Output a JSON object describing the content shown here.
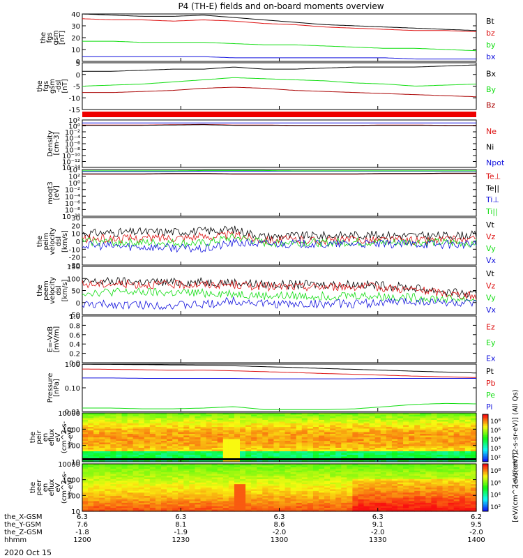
{
  "colors": {
    "black": "#000000",
    "red": "#dd1111",
    "green": "#11dd11",
    "blue": "#1111dd",
    "darkred": "#aa0000"
  },
  "chart_data": {
    "type": "line",
    "title": "P4 (TH-E) fields and on-board moments overview",
    "date": "2020 Oct 15",
    "x_range": [
      "1200",
      "1400"
    ],
    "ticks": {
      "rows": [
        {
          "name": "the_X-GSM",
          "values": [
            "6.3",
            "6.3",
            "6.3",
            "6.3",
            "6.2"
          ]
        },
        {
          "name": "the_Y-GSM",
          "values": [
            "7.6",
            "8.1",
            "8.6",
            "9.1",
            "9.5"
          ]
        },
        {
          "name": "the_Z-GSM",
          "values": [
            "-1.8",
            "-1.9",
            "-2.0",
            "-2.0",
            "-2.0"
          ]
        },
        {
          "name": "hhmm",
          "values": [
            "1200",
            "1230",
            "1300",
            "1330",
            "1400"
          ]
        }
      ]
    },
    "panels": [
      {
        "id": "fgs-gsm",
        "ylabel": [
          "the",
          "fgs",
          "gsm",
          "[nT]"
        ],
        "ylim": [
          0,
          40
        ],
        "yticks": [
          "0",
          "10",
          "20",
          "30",
          "40"
        ],
        "series": [
          {
            "name": "Bt",
            "color": "#000000",
            "values": [
              40,
              39,
              38,
              38,
              39,
              37,
              35,
              33,
              31,
              30,
              29,
              28,
              27,
              26
            ]
          },
          {
            "name": "bz",
            "color": "#dd1111",
            "values": [
              36,
              35,
              35,
              34,
              35,
              34,
              32,
              31,
              29,
              28,
              27,
              26,
              26,
              25
            ]
          },
          {
            "name": "by",
            "color": "#11dd11",
            "values": [
              17,
              17,
              16,
              16,
              16,
              15,
              14,
              14,
              13,
              12,
              11,
              11,
              10,
              9
            ]
          },
          {
            "name": "bx",
            "color": "#1111dd",
            "values": [
              4,
              4,
              4,
              4,
              4,
              3,
              3,
              3,
              3,
              3,
              3,
              2,
              2,
              2
            ]
          }
        ]
      },
      {
        "id": "fgs-dsl",
        "ylabel": [
          "the",
          "fgs",
          "gsm",
          "-dsl",
          "[nT]"
        ],
        "ylim": [
          -17,
          5
        ],
        "yticks": [
          "-15",
          "-10",
          "-5",
          "0",
          "5"
        ],
        "series": [
          {
            "name": "Bx",
            "color": "#000000",
            "values": [
              1,
              1,
              1.5,
              2,
              2,
              3,
              2,
              2,
              2.5,
              3,
              3,
              3,
              3.5,
              4
            ]
          },
          {
            "name": "By",
            "color": "#11dd11",
            "values": [
              -6,
              -5.5,
              -5,
              -4,
              -3,
              -2,
              -2.5,
              -3,
              -3.5,
              -4.5,
              -5,
              -6,
              -5.5,
              -5
            ]
          },
          {
            "name": "Bz",
            "color": "#aa0000",
            "values": [
              -9,
              -9,
              -8.5,
              -8,
              -7,
              -6.5,
              -7,
              -8,
              -8.5,
              -9,
              -9.5,
              -10,
              -10.5,
              -11
            ]
          }
        ]
      },
      {
        "id": "density",
        "ylabel": [
          "Density",
          "[cm-3]"
        ],
        "ylim": [
          -14,
          2
        ],
        "yticks": [
          "10^-14",
          "10^-12",
          "10^-10",
          "10^-8",
          "10^-6",
          "10^-4",
          "10^-2",
          "10^0",
          "10^2"
        ],
        "series": [
          {
            "name": "Ne",
            "color": "#dd1111",
            "values": [
              0.3,
              0.3,
              0.3,
              0.4,
              0.5,
              0.3,
              0.3,
              0.2,
              0.2,
              0.2,
              0.3,
              0.3,
              0.2,
              0.2
            ]
          },
          {
            "name": "Ni",
            "color": "#000000",
            "values": [
              0.2,
              0.2,
              0.2,
              0.3,
              0.4,
              0.2,
              0.2,
              0.1,
              0.1,
              0.1,
              0.2,
              0.2,
              0.1,
              0.1
            ]
          },
          {
            "name": "Npot",
            "color": "#1111dd",
            "values": [
              1,
              1,
              1,
              1,
              1,
              1,
              1,
              1,
              1,
              1,
              1,
              1,
              1,
              1
            ]
          }
        ]
      },
      {
        "id": "temperature",
        "ylabel": [
          "moqt3",
          "[eV]"
        ],
        "ylim": [
          -10,
          4
        ],
        "yticks": [
          "10^-10",
          "10^-8",
          "10^-6",
          "10^-4",
          "10^-2",
          "10^0",
          "10^2",
          "10^4"
        ],
        "series": [
          {
            "name": "Te⊥",
            "color": "#dd1111",
            "values": [
              2.6,
              2.6,
              2.6,
              2.7,
              2.7,
              2.6,
              2.6,
              2.6,
              2.6,
              2.6,
              2.7,
              2.7,
              2.8,
              2.8
            ]
          },
          {
            "name": "Te||",
            "color": "#000000",
            "values": [
              2.7,
              2.7,
              2.7,
              2.8,
              2.8,
              2.7,
              2.7,
              2.7,
              2.7,
              2.7,
              2.8,
              2.8,
              2.9,
              2.9
            ]
          },
          {
            "name": "Ti⊥",
            "color": "#1111dd",
            "values": [
              3.4,
              3.4,
              3.4,
              3.4,
              3.5,
              3.5,
              3.5,
              3.5,
              3.5,
              3.5,
              3.5,
              3.5,
              3.5,
              3.5
            ]
          },
          {
            "name": "Ti||",
            "color": "#11dd11",
            "values": [
              3.6,
              3.6,
              3.6,
              3.6,
              3.7,
              3.7,
              3.7,
              3.6,
              3.6,
              3.6,
              3.6,
              3.6,
              3.6,
              3.6
            ]
          }
        ]
      },
      {
        "id": "peim-velocity",
        "ylabel": [
          "the",
          "peim",
          "velocity",
          "dsl",
          "[km/s]"
        ],
        "ylim": [
          -30,
          30
        ],
        "yticks": [
          "-30",
          "-20",
          "-10",
          "0",
          "10",
          "20",
          "30"
        ],
        "series": [
          {
            "name": "Vt",
            "color": "#000000",
            "values": [
              10,
              11,
              12,
              12,
              13,
              15,
              6,
              7,
              7,
              8,
              8,
              7,
              7,
              8
            ]
          },
          {
            "name": "Vz",
            "color": "#dd1111",
            "values": [
              3,
              3,
              4,
              5,
              6,
              8,
              2,
              2,
              1,
              2,
              2,
              1,
              2,
              2
            ]
          },
          {
            "name": "Vy",
            "color": "#11dd11",
            "values": [
              0,
              -1,
              -2,
              -2,
              -3,
              5,
              -2,
              -1,
              -2,
              -1,
              -2,
              -1,
              -2,
              -2
            ]
          },
          {
            "name": "Vx",
            "color": "#1111dd",
            "values": [
              -5,
              -6,
              -7,
              -8,
              -10,
              -2,
              -3,
              -3,
              -4,
              -3,
              -4,
              -3,
              -4,
              -4
            ]
          }
        ]
      },
      {
        "id": "peem-velocity",
        "ylabel": [
          "the",
          "peem",
          "velocity",
          "dsl",
          "[km/s]"
        ],
        "ylim": [
          -50,
          150
        ],
        "yticks": [
          "-50",
          "0",
          "50",
          "100",
          "150"
        ],
        "series": [
          {
            "name": "Vt",
            "color": "#000000",
            "values": [
              85,
              88,
              86,
              84,
              85,
              84,
              75,
              74,
              75,
              76,
              70,
              60,
              45,
              30
            ]
          },
          {
            "name": "Vz",
            "color": "#dd1111",
            "values": [
              75,
              78,
              76,
              74,
              75,
              74,
              66,
              65,
              66,
              67,
              62,
              52,
              38,
              25
            ]
          },
          {
            "name": "Vy",
            "color": "#11dd11",
            "values": [
              42,
              44,
              42,
              40,
              40,
              38,
              28,
              27,
              28,
              30,
              25,
              20,
              15,
              12
            ]
          },
          {
            "name": "Vx",
            "color": "#1111dd",
            "values": [
              -10,
              -8,
              -10,
              -12,
              -10,
              8,
              -5,
              -8,
              -6,
              -5,
              0,
              5,
              0,
              -8
            ]
          }
        ]
      },
      {
        "id": "efield",
        "ylabel": [
          "E=-VxB",
          "[mV/m]"
        ],
        "ylim": [
          0,
          1
        ],
        "yticks": [
          "0.0",
          "0.2",
          "0.4",
          "0.6",
          "0.8",
          "1.0"
        ],
        "series": [
          {
            "name": "Ez",
            "color": "#dd1111",
            "values": []
          },
          {
            "name": "Ey",
            "color": "#11dd11",
            "values": []
          },
          {
            "name": "Ex",
            "color": "#1111dd",
            "values": []
          }
        ]
      },
      {
        "id": "pressure",
        "ylabel": [
          "Pressure",
          "[nPa]"
        ],
        "ylim": [
          0.01,
          1
        ],
        "yticks": [
          "0.01",
          "0.10",
          "1.00"
        ],
        "series": [
          {
            "name": "Pt",
            "color": "#000000",
            "values": [
              0.98,
              0.97,
              0.95,
              0.92,
              0.9,
              0.85,
              0.78,
              0.72,
              0.65,
              0.6,
              0.55,
              0.5,
              0.46,
              0.42
            ]
          },
          {
            "name": "Pb",
            "color": "#dd1111",
            "values": [
              0.62,
              0.6,
              0.58,
              0.55,
              0.56,
              0.52,
              0.48,
              0.44,
              0.4,
              0.37,
              0.34,
              0.31,
              0.29,
              0.27
            ]
          },
          {
            "name": "Pe",
            "color": "#11dd11",
            "values": [
              0.014,
              0.014,
              0.013,
              0.013,
              0.014,
              0.016,
              0.012,
              0.012,
              0.012,
              0.013,
              0.016,
              0.02,
              0.022,
              0.021
            ]
          },
          {
            "name": "Pi",
            "color": "#1111dd",
            "values": [
              0.26,
              0.26,
              0.25,
              0.25,
              0.25,
              0.25,
              0.24,
              0.24,
              0.24,
              0.24,
              0.25,
              0.25,
              0.25,
              0.25
            ]
          }
        ]
      },
      {
        "id": "peir-spectrogram",
        "type": "heatmap",
        "ylabel": [
          "the",
          "peir",
          "en",
          "eflux",
          "eV",
          "(cm^2-s-",
          "sr-eV)"
        ],
        "yticks": [
          "10",
          "100",
          "1000",
          "10000"
        ]
      },
      {
        "id": "peer-spectrogram",
        "type": "heatmap",
        "ylabel": [
          "the",
          "peer",
          "en",
          "eflux",
          "eV",
          "(cm^2-s-",
          "sr-eV)"
        ],
        "yticks": [
          "10",
          "100",
          "1000",
          "10000"
        ]
      }
    ],
    "colorbars": [
      {
        "label": "[eV/(cm^2-s-sr-eV)] (All Qs)",
        "ticks": [
          "10^8",
          "10^6",
          "10^4",
          "10^3",
          "10^2"
        ]
      },
      {
        "label": "[eV/(cm^2-s-sr-eV)]",
        "ticks": [
          "10^8",
          "10^6",
          "10^4",
          "10^2"
        ]
      }
    ]
  }
}
